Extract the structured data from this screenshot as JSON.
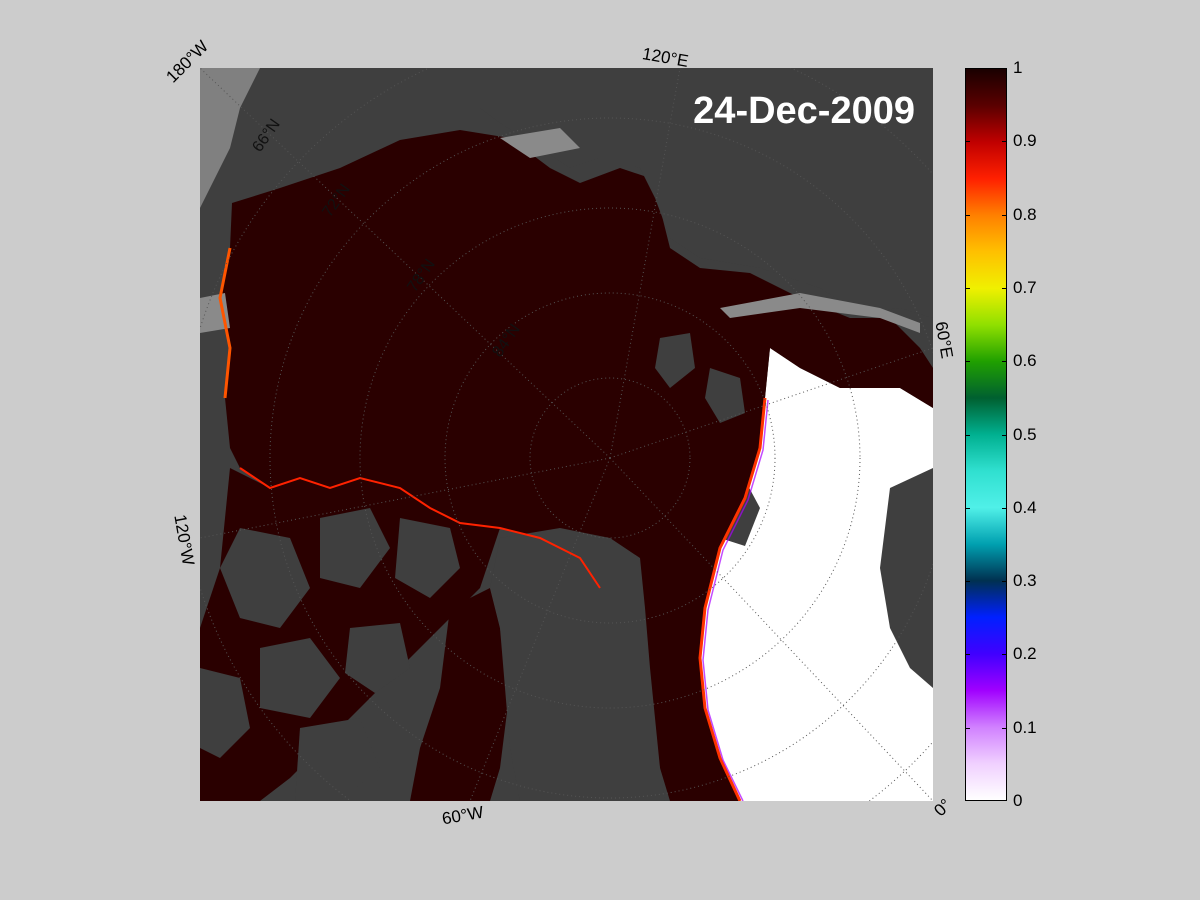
{
  "map": {
    "date_label": "24-Dec-2009",
    "lon_labels": {
      "top_left": "180°W",
      "top": "120°E",
      "right": "60°E",
      "left": "120°W",
      "bottom": "60°W",
      "bottom_right": "0°"
    },
    "lat_labels": [
      "66°N",
      "72°N",
      "78°N",
      "84°N"
    ],
    "colors": {
      "land": "#3f3f3f",
      "ice_high": "#2a0000",
      "open_water": "#ffffff",
      "background": "#cccccc"
    }
  },
  "colorbar": {
    "ticks": [
      "1",
      "0.9",
      "0.8",
      "0.7",
      "0.6",
      "0.5",
      "0.4",
      "0.3",
      "0.2",
      "0.1",
      "0"
    ],
    "min": 0,
    "max": 1
  }
}
